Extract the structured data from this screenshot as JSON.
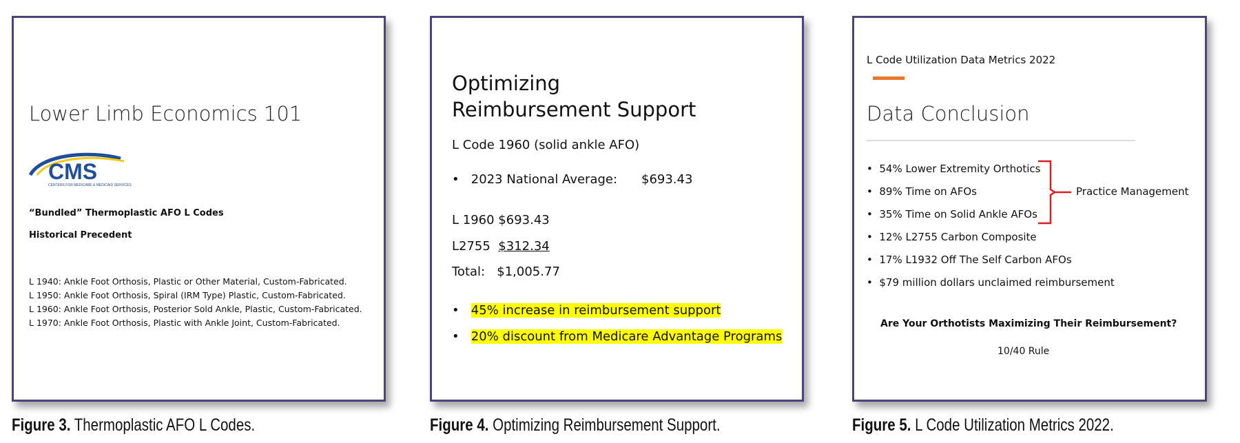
{
  "figures": [
    {
      "caption_label": "Figure 3.",
      "caption_text": " Thermoplastic AFO L Codes.",
      "title": "Lower Limb Economics 101",
      "logo": {
        "text": "CMS",
        "subtext": "CENTERS FOR MEDICARE & MEDICAID SERVICES",
        "colors": [
          "#1f4e9c",
          "#f3c80f"
        ]
      },
      "heading1": "“Bundled” Thermoplastic AFO L Codes",
      "heading2": "Historical Precedent",
      "codes": [
        "L 1940: Ankle Foot Orthosis, Plastic or Other Material, Custom-Fabricated.",
        "L 1950: Ankle Foot Orthosis, Spiral (IRM Type) Plastic, Custom-Fabricated.",
        "L 1960: Ankle Foot Orthosis, Posterior Sold Ankle, Plastic, Custom-Fabricated.",
        "L 1970: Ankle Foot Orthosis, Plastic with Ankle Joint, Custom-Fabricated."
      ]
    },
    {
      "caption_label": "Figure 4.",
      "caption_text": " Optimizing Reimbursement Support.",
      "title_line1": "Optimizing",
      "title_line2": "Reimbursement Support",
      "subtitle": "L Code 1960 (solid ankle AFO)",
      "avg_label": "2023 National Average:",
      "avg_value": "$693.43",
      "line1_code": "L 1960",
      "line1_value": "$693.43",
      "line2_code": "L2755",
      "line2_value": "$312.34",
      "total_label": "Total:",
      "total_value": "$1,005.77",
      "highlights": [
        "45% increase in reimbursement support",
        "20% discount from Medicare Advantage Programs"
      ],
      "highlight_color": "#ffff00"
    },
    {
      "caption_label": "Figure 5.",
      "caption_text": " L Code Utilization Metrics 2022.",
      "kicker": "L Code Utilization Data Metrics 2022",
      "accent_color": "#e8782a",
      "title": "Data Conclusion",
      "bullets": [
        "54% Lower Extremity Orthotics",
        "89% Time on AFOs",
        "35% Time on Solid Ankle AFOs",
        "12% L2755 Carbon Composite",
        "17% L1932 Off The Self Carbon AFOs",
        "$79 million dollars unclaimed reimbursement"
      ],
      "brace_label": "Practice Management",
      "brace_color": "#e01b1b",
      "question": "Are Your Orthotists Maximizing Their Reimbursement?",
      "rule": "10/40 Rule"
    }
  ]
}
